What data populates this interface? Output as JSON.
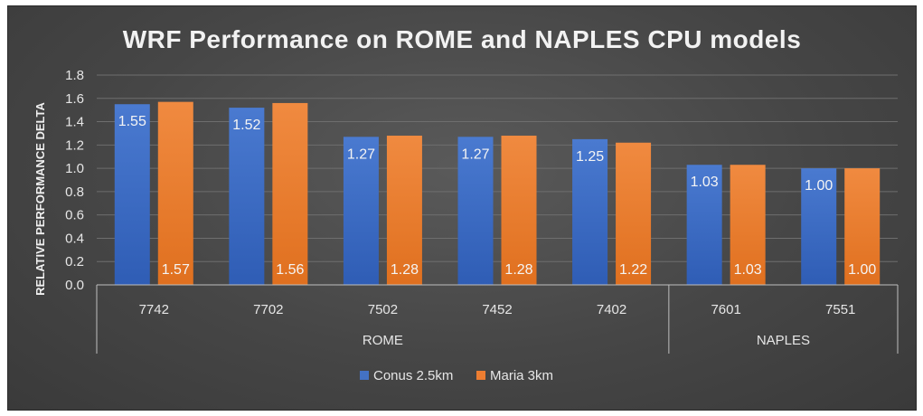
{
  "chart_data": {
    "type": "bar",
    "title": "WRF Performance on ROME and NAPLES CPU models",
    "ylabel": "RELATIVE PERFORMANCE DELTA",
    "xlabel": "",
    "ylim": [
      0,
      1.8
    ],
    "yticks": [
      "0.0",
      "0.2",
      "0.4",
      "0.6",
      "0.8",
      "1.0",
      "1.2",
      "1.4",
      "1.6",
      "1.8"
    ],
    "categories": [
      "7742",
      "7702",
      "7502",
      "7452",
      "7402",
      "7601",
      "7551"
    ],
    "groups": [
      {
        "name": "ROME",
        "categories": [
          "7742",
          "7702",
          "7502",
          "7452",
          "7402"
        ]
      },
      {
        "name": "NAPLES",
        "categories": [
          "7601",
          "7551"
        ]
      }
    ],
    "series": [
      {
        "name": "Conus 2.5km",
        "color": "#4472c4",
        "values": [
          1.55,
          1.52,
          1.27,
          1.27,
          1.25,
          1.03,
          1.0
        ],
        "labels": [
          "1.55",
          "1.52",
          "1.27",
          "1.27",
          "1.25",
          "1.03",
          "1.00"
        ],
        "label_position": "inside-top"
      },
      {
        "name": "Maria 3km",
        "color": "#ed7d31",
        "values": [
          1.57,
          1.56,
          1.28,
          1.28,
          1.22,
          1.03,
          1.0
        ],
        "labels": [
          "1.57",
          "1.56",
          "1.28",
          "1.28",
          "1.22",
          "1.03",
          "1.00"
        ],
        "label_position": "inside-base"
      }
    ],
    "grid": true,
    "legend": "bottom-center"
  }
}
